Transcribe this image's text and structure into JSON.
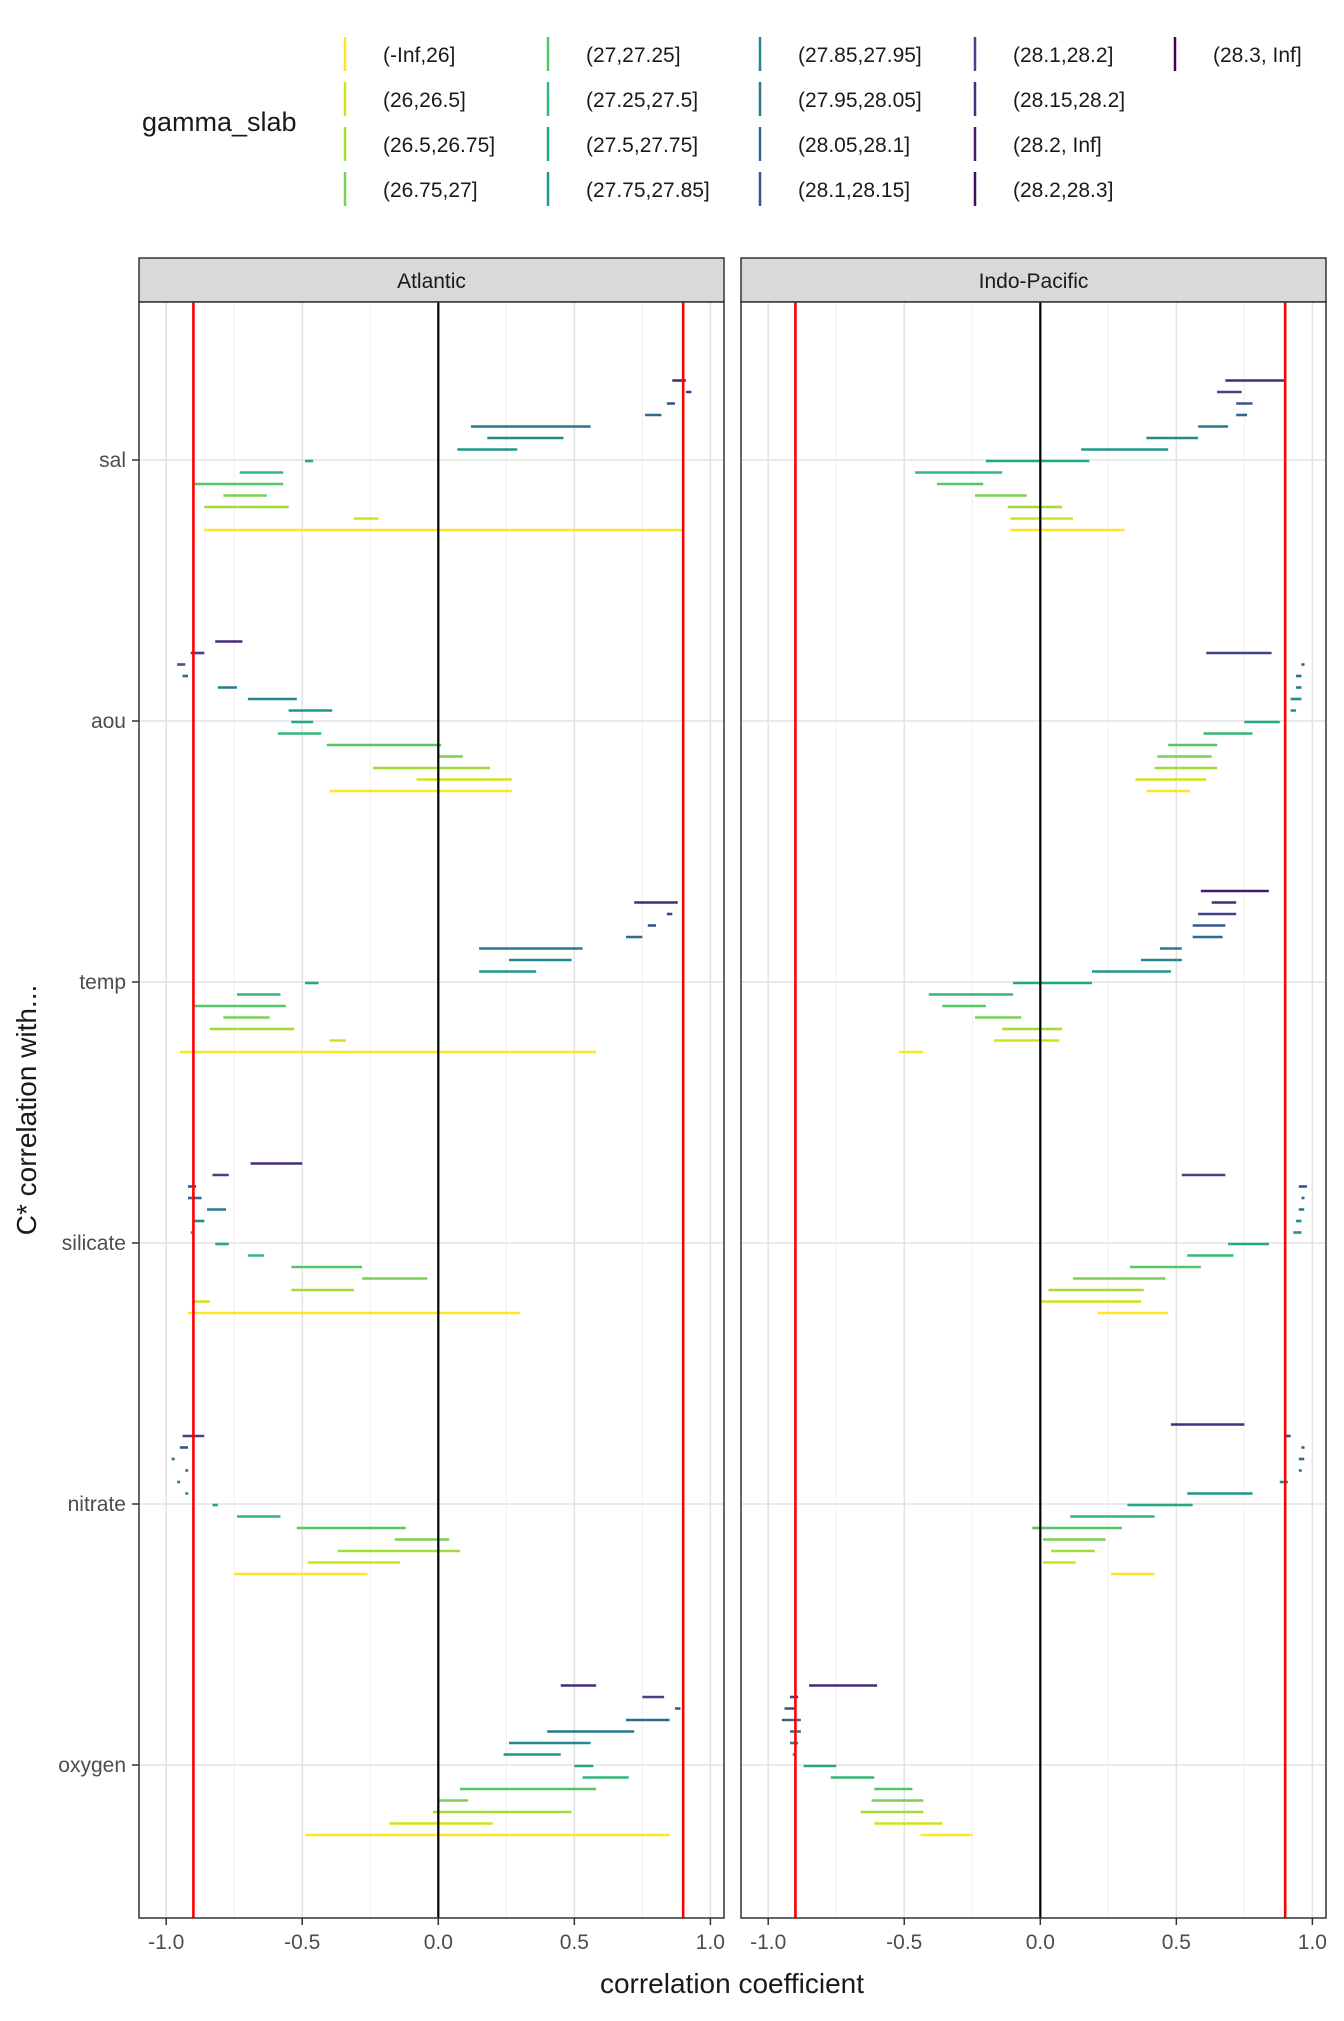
{
  "chart_data": {
    "type": "range-segments",
    "ylabel": "C* correlation with...",
    "xlabel": "correlation coefficient",
    "xlim": [
      -1.1,
      1.05
    ],
    "x_ticks": [
      -1.0,
      -0.5,
      0.0,
      0.5,
      1.0
    ],
    "x_tick_labels": [
      "-1.0",
      "-0.5",
      "0.0",
      "0.5",
      "1.0"
    ],
    "reference_lines": {
      "red": [
        -0.9,
        0.9
      ],
      "black": [
        0.0
      ],
      "red_color": "#ff0000",
      "black_color": "#000000"
    },
    "variables": [
      "sal",
      "aou",
      "temp",
      "silicate",
      "nitrate",
      "oxygen"
    ],
    "legend": {
      "title": "gamma_slab",
      "columns": [
        [
          "(-Inf,26]",
          "(26,26.5]",
          "(26.5,26.75]",
          "(26.75,27]"
        ],
        [
          "(27,27.25]",
          "(27.25,27.5]",
          "(27.5,27.75]",
          "(27.75,27.85]"
        ],
        [
          "(27.85,27.95]",
          "(27.95,28.05]",
          "(28.05,28.1]",
          "(28.1,28.15]"
        ],
        [
          "(28.1,28.2]",
          "(28.15,28.2]",
          "(28.2, Inf]",
          "(28.2,28.3]"
        ],
        [
          "(28.3, Inf]"
        ]
      ]
    },
    "slab_colors": [
      "#fde725",
      "#d2e21b",
      "#a5db36",
      "#7ad151",
      "#54c568",
      "#35b779",
      "#22a884",
      "#1f988b",
      "#23898e",
      "#2a788e",
      "#31688e",
      "#39568c",
      "#414487",
      "#472d7b",
      "#481a6c",
      "#470d60",
      "#440154"
    ],
    "panels": [
      {
        "title": "Atlantic",
        "variables": {
          "sal": [
            [
              -0.86,
              0.9
            ],
            [
              -0.31,
              -0.22
            ],
            [
              -0.86,
              -0.55
            ],
            [
              -0.79,
              -0.63
            ],
            [
              -0.9,
              -0.57
            ],
            [
              -0.73,
              -0.57
            ],
            [
              -0.49,
              -0.46
            ],
            [
              0.07,
              0.29
            ],
            [
              0.18,
              0.46
            ],
            [
              0.12,
              0.56
            ],
            [
              0.76,
              0.82
            ],
            [
              0.84,
              0.87
            ],
            [
              0.91,
              0.93
            ],
            [
              0.86,
              0.91
            ]
          ],
          "aou": [
            [
              -0.4,
              0.27
            ],
            [
              -0.08,
              0.27
            ],
            [
              -0.24,
              0.19
            ],
            [
              0.0,
              0.09
            ],
            [
              -0.41,
              0.01
            ],
            [
              -0.59,
              -0.43
            ],
            [
              -0.54,
              -0.46
            ],
            [
              -0.55,
              -0.39
            ],
            [
              -0.7,
              -0.52
            ],
            [
              -0.81,
              -0.74
            ],
            [
              -0.94,
              -0.92
            ],
            [
              -0.96,
              -0.93
            ],
            [
              -0.91,
              -0.86
            ],
            [
              -0.82,
              -0.72
            ]
          ],
          "temp": [
            [
              -0.95,
              0.58
            ],
            [
              -0.4,
              -0.34
            ],
            [
              -0.84,
              -0.53
            ],
            [
              -0.79,
              -0.62
            ],
            [
              -0.9,
              -0.56
            ],
            [
              -0.74,
              -0.58
            ],
            [
              -0.49,
              -0.44
            ],
            [
              0.15,
              0.36
            ],
            [
              0.26,
              0.49
            ],
            [
              0.15,
              0.53
            ],
            [
              0.69,
              0.75
            ],
            [
              0.77,
              0.8
            ],
            [
              0.84,
              0.86
            ],
            [
              0.72,
              0.88
            ]
          ],
          "silicate": [
            [
              -0.92,
              0.3
            ],
            [
              -0.9,
              -0.84
            ],
            [
              -0.54,
              -0.31
            ],
            [
              -0.28,
              -0.04
            ],
            [
              -0.54,
              -0.28
            ],
            [
              -0.7,
              -0.64
            ],
            [
              -0.82,
              -0.77
            ],
            [
              -0.91,
              -0.9
            ],
            [
              -0.9,
              -0.86
            ],
            [
              -0.85,
              -0.78
            ],
            [
              -0.92,
              -0.87
            ],
            [
              -0.92,
              -0.89
            ],
            [
              -0.83,
              -0.77
            ],
            [
              -0.69,
              -0.5
            ]
          ],
          "nitrate": [
            [
              -0.75,
              -0.26
            ],
            [
              -0.48,
              -0.14
            ],
            [
              -0.37,
              0.08
            ],
            [
              -0.16,
              0.04
            ],
            [
              -0.52,
              -0.12
            ],
            [
              -0.74,
              -0.58
            ],
            [
              -0.83,
              -0.81
            ],
            [
              -0.93,
              -0.92
            ],
            [
              -0.96,
              -0.95
            ],
            [
              -0.93,
              -0.92
            ],
            [
              -0.98,
              -0.97
            ],
            [
              -0.95,
              -0.92
            ],
            [
              -0.94,
              -0.86
            ]
          ],
          "oxygen": [
            [
              -0.49,
              0.85
            ],
            [
              -0.18,
              0.2
            ],
            [
              -0.02,
              0.49
            ],
            [
              0.0,
              0.11
            ],
            [
              0.08,
              0.58
            ],
            [
              0.53,
              0.7
            ],
            [
              0.5,
              0.57
            ],
            [
              0.24,
              0.45
            ],
            [
              0.26,
              0.56
            ],
            [
              0.4,
              0.72
            ],
            [
              0.69,
              0.85
            ],
            [
              0.87,
              0.89
            ],
            [
              0.75,
              0.83
            ],
            [
              0.45,
              0.58
            ]
          ]
        }
      },
      {
        "title": "Indo-Pacific",
        "variables": {
          "sal": [
            [
              -0.11,
              0.31
            ],
            [
              -0.11,
              0.12
            ],
            [
              -0.12,
              0.08
            ],
            [
              -0.24,
              -0.05
            ],
            [
              -0.38,
              -0.21
            ],
            [
              -0.46,
              -0.14
            ],
            [
              -0.2,
              0.18
            ],
            [
              0.15,
              0.47
            ],
            [
              0.39,
              0.58
            ],
            [
              0.58,
              0.69
            ],
            [
              0.72,
              0.76
            ],
            [
              0.72,
              0.78
            ],
            [
              0.65,
              0.74
            ],
            [
              0.68,
              0.9
            ]
          ],
          "aou": [
            [
              0.39,
              0.55
            ],
            [
              0.35,
              0.61
            ],
            [
              0.42,
              0.65
            ],
            [
              0.43,
              0.63
            ],
            [
              0.47,
              0.65
            ],
            [
              0.6,
              0.78
            ],
            [
              0.75,
              0.88
            ],
            [
              0.92,
              0.94
            ],
            [
              0.92,
              0.96
            ],
            [
              0.94,
              0.96
            ],
            [
              0.94,
              0.96
            ],
            [
              0.96,
              0.97
            ],
            [
              0.61,
              0.85
            ]
          ],
          "temp": [
            [
              -0.52,
              -0.43
            ],
            [
              -0.17,
              0.07
            ],
            [
              -0.14,
              0.08
            ],
            [
              -0.24,
              -0.07
            ],
            [
              -0.36,
              -0.2
            ],
            [
              -0.41,
              -0.1
            ],
            [
              -0.1,
              0.19
            ],
            [
              0.19,
              0.48
            ],
            [
              0.37,
              0.52
            ],
            [
              0.44,
              0.52
            ],
            [
              0.56,
              0.67
            ],
            [
              0.56,
              0.68
            ],
            [
              0.58,
              0.72
            ],
            [
              0.63,
              0.72
            ],
            [
              0.59,
              0.84
            ]
          ],
          "silicate": [
            [
              0.21,
              0.47
            ],
            [
              0.0,
              0.37
            ],
            [
              0.03,
              0.38
            ],
            [
              0.12,
              0.46
            ],
            [
              0.33,
              0.59
            ],
            [
              0.54,
              0.71
            ],
            [
              0.69,
              0.84
            ],
            [
              0.93,
              0.96
            ],
            [
              0.94,
              0.96
            ],
            [
              0.95,
              0.97
            ],
            [
              0.96,
              0.97
            ],
            [
              0.95,
              0.98
            ],
            [
              0.52,
              0.68
            ]
          ],
          "nitrate": [
            [
              0.26,
              0.42
            ],
            [
              0.01,
              0.13
            ],
            [
              0.04,
              0.2
            ],
            [
              0.01,
              0.24
            ],
            [
              -0.03,
              0.3
            ],
            [
              0.11,
              0.42
            ],
            [
              0.32,
              0.56
            ],
            [
              0.54,
              0.78
            ],
            [
              0.88,
              0.91
            ],
            [
              0.95,
              0.96
            ],
            [
              0.95,
              0.97
            ],
            [
              0.96,
              0.97
            ],
            [
              0.9,
              0.92
            ],
            [
              0.48,
              0.75
            ]
          ],
          "oxygen": [
            [
              -0.44,
              -0.25
            ],
            [
              -0.61,
              -0.36
            ],
            [
              -0.66,
              -0.43
            ],
            [
              -0.62,
              -0.43
            ],
            [
              -0.61,
              -0.47
            ],
            [
              -0.77,
              -0.61
            ],
            [
              -0.87,
              -0.75
            ],
            [
              -0.91,
              -0.9
            ],
            [
              -0.92,
              -0.89
            ],
            [
              -0.92,
              -0.88
            ],
            [
              -0.95,
              -0.88
            ],
            [
              -0.94,
              -0.9
            ],
            [
              -0.92,
              -0.89
            ],
            [
              -0.85,
              -0.6
            ]
          ]
        }
      }
    ]
  }
}
